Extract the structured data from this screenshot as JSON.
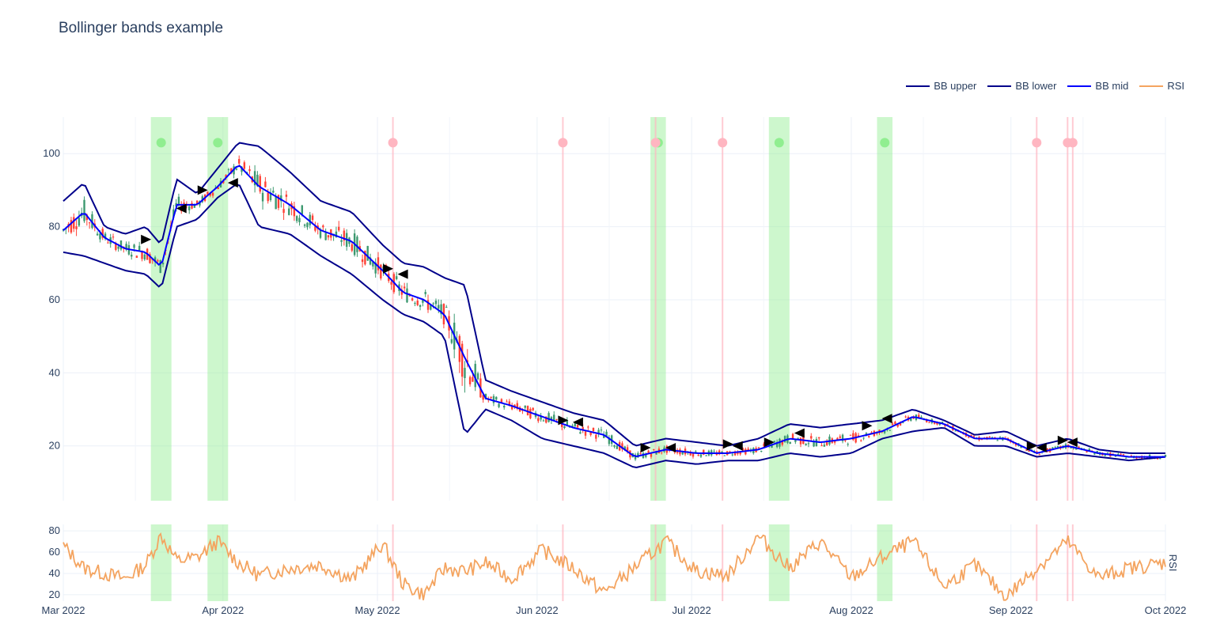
{
  "title": "Bollinger bands example",
  "legend": [
    {
      "label": "BB upper",
      "color": "#00008b"
    },
    {
      "label": "BB lower",
      "color": "#00008b"
    },
    {
      "label": "BB mid",
      "color": "#0000ff"
    },
    {
      "label": "RSI",
      "color": "#f4a460"
    }
  ],
  "colors": {
    "increasing": "#3d9970",
    "decreasing": "#ff4136",
    "buy_band": "#90ee90",
    "sell_line": "#ffb6c1",
    "grid": "#ebf0f8"
  },
  "chart_data": [
    {
      "type": "line",
      "panel": "price",
      "x_range": [
        "2022-03-01",
        "2022-10-01"
      ],
      "ylim": [
        5,
        110
      ],
      "x_tick_labels": [
        "Mar 2022",
        "Apr 2022",
        "May 2022",
        "Jun 2022",
        "Jul 2022",
        "Aug 2022",
        "Sep 2022",
        "Oct 2022"
      ],
      "y_tick_labels": [
        "20",
        "40",
        "60",
        "80",
        "100"
      ],
      "series": [
        {
          "name": "BB upper",
          "x": [
            "2022-03-01",
            "2022-03-05",
            "2022-03-09",
            "2022-03-13",
            "2022-03-17",
            "2022-03-20",
            "2022-03-23",
            "2022-03-27",
            "2022-03-31",
            "2022-04-04",
            "2022-04-08",
            "2022-04-14",
            "2022-04-20",
            "2022-04-26",
            "2022-05-02",
            "2022-05-06",
            "2022-05-10",
            "2022-05-14",
            "2022-05-18",
            "2022-05-22",
            "2022-05-27",
            "2022-06-02",
            "2022-06-08",
            "2022-06-14",
            "2022-06-20",
            "2022-06-26",
            "2022-07-02",
            "2022-07-08",
            "2022-07-14",
            "2022-07-20",
            "2022-07-26",
            "2022-08-01",
            "2022-08-07",
            "2022-08-13",
            "2022-08-19",
            "2022-08-25",
            "2022-08-31",
            "2022-09-06",
            "2022-09-12",
            "2022-09-18",
            "2022-09-24",
            "2022-10-01"
          ],
          "values": [
            87,
            92,
            80,
            78,
            80,
            75,
            93,
            89,
            96,
            103,
            102,
            95,
            87,
            84,
            75,
            70,
            69,
            66,
            64,
            38,
            35,
            32,
            29,
            27,
            20,
            22,
            21,
            20,
            22,
            26,
            25,
            26,
            27,
            30,
            27,
            23,
            24,
            20,
            22,
            19,
            18,
            18
          ]
        },
        {
          "name": "BB lower",
          "x": [
            "2022-03-01",
            "2022-03-05",
            "2022-03-09",
            "2022-03-13",
            "2022-03-17",
            "2022-03-20",
            "2022-03-23",
            "2022-03-27",
            "2022-03-31",
            "2022-04-04",
            "2022-04-08",
            "2022-04-14",
            "2022-04-20",
            "2022-04-26",
            "2022-05-02",
            "2022-05-06",
            "2022-05-10",
            "2022-05-14",
            "2022-05-18",
            "2022-05-22",
            "2022-05-27",
            "2022-06-02",
            "2022-06-08",
            "2022-06-14",
            "2022-06-20",
            "2022-06-26",
            "2022-07-02",
            "2022-07-08",
            "2022-07-14",
            "2022-07-20",
            "2022-07-26",
            "2022-08-01",
            "2022-08-07",
            "2022-08-13",
            "2022-08-19",
            "2022-08-25",
            "2022-08-31",
            "2022-09-06",
            "2022-09-12",
            "2022-09-18",
            "2022-09-24",
            "2022-10-01"
          ],
          "values": [
            73,
            72,
            70,
            68,
            67,
            63,
            80,
            82,
            88,
            92,
            80,
            78,
            72,
            67,
            60,
            56,
            54,
            50,
            23,
            30,
            27,
            22,
            20,
            18,
            14,
            16,
            15,
            16,
            16,
            18,
            17,
            18,
            22,
            24,
            25,
            20,
            20,
            17,
            18,
            17,
            16,
            17
          ]
        },
        {
          "name": "BB mid",
          "x": [
            "2022-03-01",
            "2022-03-05",
            "2022-03-09",
            "2022-03-13",
            "2022-03-17",
            "2022-03-20",
            "2022-03-23",
            "2022-03-27",
            "2022-03-31",
            "2022-04-04",
            "2022-04-08",
            "2022-04-14",
            "2022-04-20",
            "2022-04-26",
            "2022-05-02",
            "2022-05-06",
            "2022-05-10",
            "2022-05-14",
            "2022-05-18",
            "2022-05-22",
            "2022-05-27",
            "2022-06-02",
            "2022-06-08",
            "2022-06-14",
            "2022-06-20",
            "2022-06-26",
            "2022-07-02",
            "2022-07-08",
            "2022-07-14",
            "2022-07-20",
            "2022-07-26",
            "2022-08-01",
            "2022-08-07",
            "2022-08-13",
            "2022-08-19",
            "2022-08-25",
            "2022-08-31",
            "2022-09-06",
            "2022-09-12",
            "2022-09-18",
            "2022-09-24",
            "2022-10-01"
          ],
          "values": [
            79,
            84,
            77,
            74,
            73,
            69,
            86,
            86,
            91,
            97,
            91,
            86,
            79,
            76,
            68,
            62,
            60,
            56,
            44,
            33,
            31,
            28,
            25,
            23,
            17,
            19,
            18,
            18,
            19,
            22,
            21,
            22,
            24,
            28,
            26,
            22,
            22,
            18,
            20,
            18,
            17,
            17
          ]
        }
      ],
      "candles_increasing_color": "#3d9970",
      "candles_decreasing_color": "#ff4136",
      "buy_periods": [
        [
          "2022-03-18",
          "2022-03-22"
        ],
        [
          "2022-03-29",
          "2022-04-02"
        ],
        [
          "2022-06-23",
          "2022-06-26"
        ],
        [
          "2022-07-16",
          "2022-07-20"
        ],
        [
          "2022-08-06",
          "2022-08-09"
        ]
      ],
      "sell_lines": [
        "2022-05-04",
        "2022-06-06",
        "2022-06-24",
        "2022-07-07",
        "2022-09-06",
        "2022-09-12",
        "2022-09-13"
      ],
      "buy_markers_y": 103,
      "sell_markers_y": 103
    },
    {
      "type": "line",
      "panel": "rsi",
      "ylim": [
        14,
        86
      ],
      "ylabel": "RSI",
      "y_tick_labels": [
        "20",
        "40",
        "60",
        "80"
      ],
      "series": [
        {
          "name": "RSI",
          "x": [
            "2022-03-01",
            "2022-03-05",
            "2022-03-09",
            "2022-03-13",
            "2022-03-17",
            "2022-03-20",
            "2022-03-23",
            "2022-03-27",
            "2022-03-31",
            "2022-04-04",
            "2022-04-08",
            "2022-04-14",
            "2022-04-20",
            "2022-04-26",
            "2022-05-02",
            "2022-05-06",
            "2022-05-10",
            "2022-05-14",
            "2022-05-18",
            "2022-05-22",
            "2022-05-27",
            "2022-06-02",
            "2022-06-08",
            "2022-06-14",
            "2022-06-20",
            "2022-06-26",
            "2022-07-02",
            "2022-07-08",
            "2022-07-14",
            "2022-07-20",
            "2022-07-26",
            "2022-08-01",
            "2022-08-07",
            "2022-08-13",
            "2022-08-19",
            "2022-08-25",
            "2022-08-31",
            "2022-09-06",
            "2022-09-12",
            "2022-09-18",
            "2022-09-24",
            "2022-10-01"
          ],
          "values": [
            66,
            45,
            40,
            35,
            48,
            76,
            52,
            55,
            70,
            50,
            38,
            45,
            48,
            34,
            68,
            30,
            20,
            45,
            42,
            50,
            35,
            62,
            45,
            22,
            46,
            70,
            42,
            38,
            75,
            45,
            70,
            36,
            55,
            70,
            28,
            48,
            18,
            45,
            70,
            36,
            45,
            50
          ]
        }
      ]
    }
  ]
}
